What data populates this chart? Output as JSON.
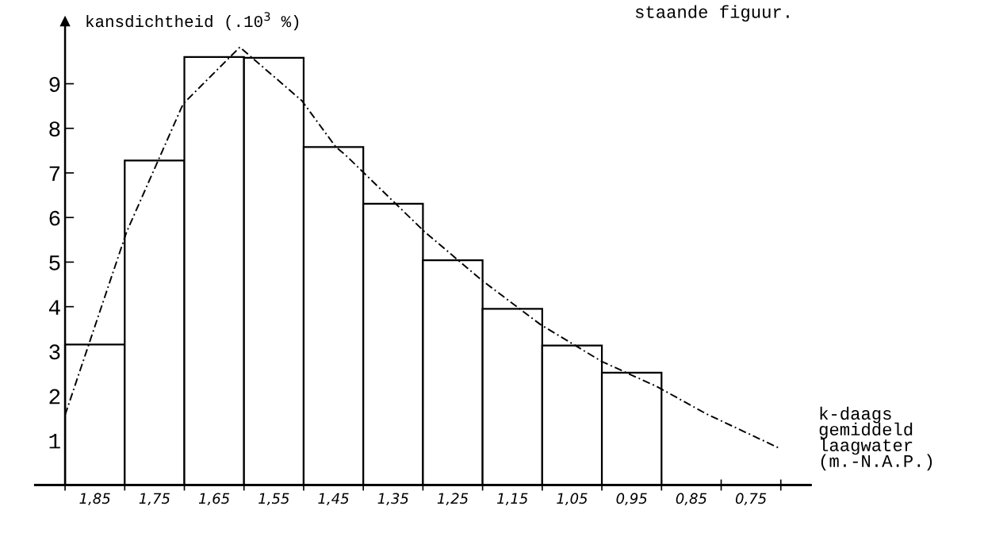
{
  "chart_data": {
    "type": "histogram",
    "ylabel": "kansdichtheid (.10$^{3}$ %)",
    "xlabel": "k-daags\ngemiddeld\nlaagwater\n(m.-N.A.P.)",
    "annotations": [
      "staande figuur."
    ],
    "bins": [
      1.9,
      1.8,
      1.7,
      1.6,
      1.5,
      1.4,
      1.3,
      1.2,
      1.1,
      1.0,
      0.9
    ],
    "values": [
      3.15,
      7.28,
      9.6,
      9.58,
      7.58,
      6.31,
      5.04,
      3.95,
      3.13,
      2.52
    ],
    "color": "#ffffff",
    "series": [
      {
        "type": "line",
        "color": "#000000",
        "line_style": "dashed",
        "x": [
          1.9,
          1.797,
          1.702,
          1.607,
          1.503,
          1.446,
          1.429,
          1.298,
          1.203,
          1.103,
          1.0,
          0.908,
          0.824,
          0.703
        ],
        "values": [
          1.57,
          5.67,
          8.55,
          9.82,
          8.62,
          7.58,
          7.39,
          5.69,
          4.61,
          3.6,
          2.77,
          2.21,
          1.59,
          0.83
        ]
      }
    ],
    "xlim": [
      1.95,
      0.65
    ],
    "ylim": [
      0,
      10.4
    ],
    "xticks": [
      {
        "value": 1.9,
        "label": null
      },
      {
        "value": 1.85,
        "label": "1,85"
      },
      {
        "value": 1.8,
        "label": null
      },
      {
        "value": 1.75,
        "label": "1,75"
      },
      {
        "value": 1.7,
        "label": null
      },
      {
        "value": 1.65,
        "label": "1,65"
      },
      {
        "value": 1.6,
        "label": null
      },
      {
        "value": 1.55,
        "label": "1,55"
      },
      {
        "value": 1.5,
        "label": null
      },
      {
        "value": 1.45,
        "label": "1,45"
      },
      {
        "value": 1.4,
        "label": null
      },
      {
        "value": 1.35,
        "label": "1,35"
      },
      {
        "value": 1.3,
        "label": null
      },
      {
        "value": 1.25,
        "label": "1,25"
      },
      {
        "value": 1.2,
        "label": null
      },
      {
        "value": 1.15,
        "label": "1,15"
      },
      {
        "value": 1.1,
        "label": null
      },
      {
        "value": 1.05,
        "label": "1,05"
      },
      {
        "value": 1.0,
        "label": null
      },
      {
        "value": 0.95,
        "label": "0,95"
      },
      {
        "value": 0.9,
        "label": null
      },
      {
        "value": 0.85,
        "label": "0,85"
      },
      {
        "value": 0.8,
        "label": null
      },
      {
        "value": 0.75,
        "label": "0,75"
      },
      {
        "value": 0.7,
        "label": null
      }
    ],
    "yticks": [
      1,
      2,
      3,
      4,
      5,
      6,
      7,
      8,
      9
    ],
    "grid": false,
    "legend": false
  }
}
